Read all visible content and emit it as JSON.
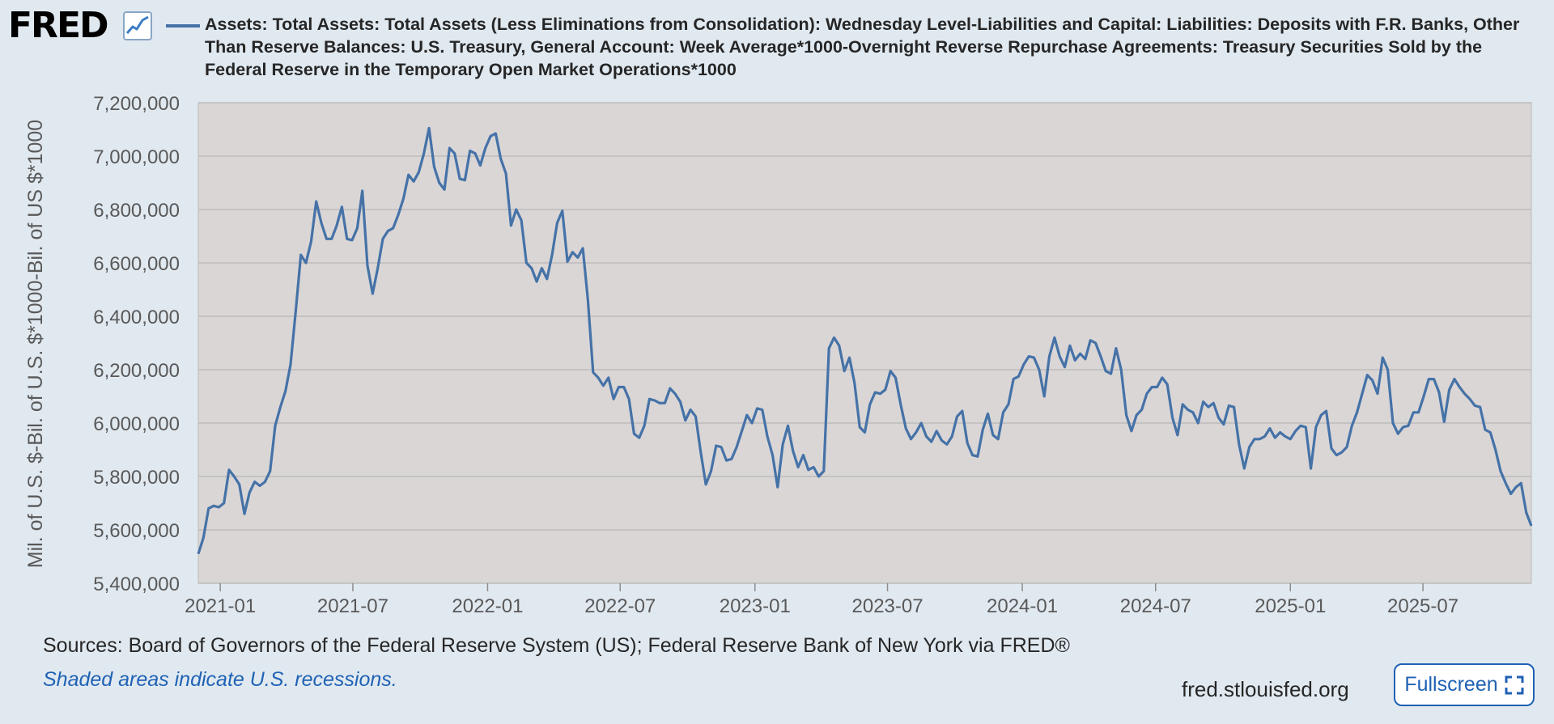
{
  "header": {
    "logo_text": "FRED",
    "legend_color": "#4572a7",
    "series_title": "Assets: Total Assets: Total Assets (Less Eliminations from Consolidation): Wednesday Level-Liabilities and Capital: Liabilities: Deposits with F.R. Banks, Other Than Reserve Balances: U.S. Treasury, General Account: Week Average*1000-Overnight Reverse Repurchase Agreements: Treasury Securities Sold by the Federal Reserve in the Temporary Open Market Operations*1000"
  },
  "footer": {
    "sources": "Sources: Board of Governors of the Federal Reserve System (US); Federal Reserve Bank of New York via FRED®",
    "recessions_note": "Shaded areas indicate U.S. recessions.",
    "site": "fred.stlouisfed.org",
    "fullscreen_label": "Fullscreen",
    "fullscreen_icon": "expand-icon"
  },
  "colors": {
    "background": "#e1e9f0",
    "plot_background": "#dad6d6",
    "line": "#4572a7",
    "gridline": "#bcbcbc",
    "link": "#1f62b4"
  },
  "chart_data": {
    "type": "line",
    "title": "",
    "xlabel": "",
    "ylabel": "Mil. of U.S. $-Bil. of U.S. $*1000-Bil. of US $*1000",
    "x_start": "2020-12-02",
    "x_step": "weekly",
    "xlim": [
      "2020-12-02",
      "2025-11-26"
    ],
    "ylim": [
      5400000,
      7200000
    ],
    "y_ticks": [
      5400000,
      5600000,
      5800000,
      6000000,
      6200000,
      6400000,
      6600000,
      6800000,
      7000000,
      7200000
    ],
    "y_tick_labels": [
      "5,400,000",
      "5,600,000",
      "5,800,000",
      "6,000,000",
      "6,200,000",
      "6,400,000",
      "6,600,000",
      "6,800,000",
      "7,000,000",
      "7,200,000"
    ],
    "x_ticks": [
      "2021-01-01",
      "2021-07-01",
      "2022-01-01",
      "2022-07-01",
      "2023-01-01",
      "2023-07-01",
      "2024-01-01",
      "2024-07-01",
      "2025-01-01",
      "2025-07-01"
    ],
    "x_tick_labels": [
      "2021-01",
      "2021-07",
      "2022-01",
      "2022-07",
      "2023-01",
      "2023-07",
      "2024-01",
      "2024-07",
      "2025-01",
      "2025-07"
    ],
    "grid": true,
    "series": [
      {
        "name": "Assets: Total Assets: Total Assets (Less Eliminations from Consolidation): Wednesday Level-Liabilities and Capital: Liabilities: Deposits with F.R. Banks, Other Than Reserve Balances: U.S. Treasury, General Account: Week Average*1000-Overnight Reverse Repurchase Agreements: Treasury Securities Sold by the Federal Reserve in the Temporary Open Market Operations*1000",
        "values": [
          5510000,
          5570000,
          5680000,
          5690000,
          5685000,
          5700000,
          5825000,
          5800000,
          5770000,
          5660000,
          5740000,
          5780000,
          5765000,
          5780000,
          5820000,
          5990000,
          6060000,
          6120000,
          6220000,
          6420000,
          6630000,
          6600000,
          6680000,
          6830000,
          6750000,
          6690000,
          6690000,
          6740000,
          6810000,
          6690000,
          6685000,
          6730000,
          6870000,
          6590000,
          6485000,
          6580000,
          6690000,
          6720000,
          6730000,
          6780000,
          6840000,
          6930000,
          6905000,
          6940000,
          7010000,
          7105000,
          6960000,
          6900000,
          6875000,
          7030000,
          7010000,
          6915000,
          6910000,
          7020000,
          7010000,
          6965000,
          7030000,
          7075000,
          7085000,
          6990000,
          6935000,
          6740000,
          6800000,
          6760000,
          6600000,
          6580000,
          6530000,
          6580000,
          6540000,
          6630000,
          6750000,
          6795000,
          6605000,
          6640000,
          6620000,
          6655000,
          6460000,
          6190000,
          6170000,
          6140000,
          6170000,
          6090000,
          6135000,
          6135000,
          6090000,
          5960000,
          5945000,
          5990000,
          6090000,
          6085000,
          6075000,
          6075000,
          6130000,
          6110000,
          6080000,
          6010000,
          6050000,
          6025000,
          5890000,
          5770000,
          5820000,
          5915000,
          5910000,
          5860000,
          5865000,
          5910000,
          5970000,
          6030000,
          6000000,
          6055000,
          6050000,
          5950000,
          5880000,
          5760000,
          5920000,
          5990000,
          5895000,
          5835000,
          5880000,
          5825000,
          5835000,
          5800000,
          5820000,
          6280000,
          6320000,
          6290000,
          6195000,
          6245000,
          6150000,
          5985000,
          5965000,
          6070000,
          6115000,
          6110000,
          6125000,
          6195000,
          6170000,
          6070000,
          5980000,
          5940000,
          5965000,
          6000000,
          5950000,
          5930000,
          5970000,
          5935000,
          5920000,
          5950000,
          6025000,
          6045000,
          5925000,
          5880000,
          5875000,
          5975000,
          6035000,
          5955000,
          5940000,
          6040000,
          6070000,
          6165000,
          6175000,
          6220000,
          6250000,
          6245000,
          6200000,
          6100000,
          6250000,
          6320000,
          6250000,
          6210000,
          6290000,
          6235000,
          6260000,
          6240000,
          6310000,
          6300000,
          6250000,
          6195000,
          6185000,
          6280000,
          6200000,
          6030000,
          5970000,
          6030000,
          6050000,
          6110000,
          6135000,
          6135000,
          6170000,
          6145000,
          6020000,
          5955000,
          6070000,
          6050000,
          6040000,
          6000000,
          6080000,
          6060000,
          6075000,
          6020000,
          5995000,
          6065000,
          6060000,
          5920000,
          5830000,
          5910000,
          5940000,
          5940000,
          5950000,
          5980000,
          5945000,
          5965000,
          5950000,
          5940000,
          5970000,
          5990000,
          5985000,
          5830000,
          5985000,
          6030000,
          6045000,
          5905000,
          5880000,
          5890000,
          5910000,
          5990000,
          6040000,
          6110000,
          6180000,
          6160000,
          6110000,
          6245000,
          6200000,
          6000000,
          5960000,
          5985000,
          5990000,
          6040000,
          6040000,
          6100000,
          6165000,
          6165000,
          6115000,
          6005000,
          6125000,
          6165000,
          6135000,
          6110000,
          6090000,
          6065000,
          6060000,
          5975000,
          5965000,
          5900000,
          5820000,
          5775000,
          5735000,
          5760000,
          5775000,
          5665000,
          5615000
        ]
      }
    ]
  }
}
